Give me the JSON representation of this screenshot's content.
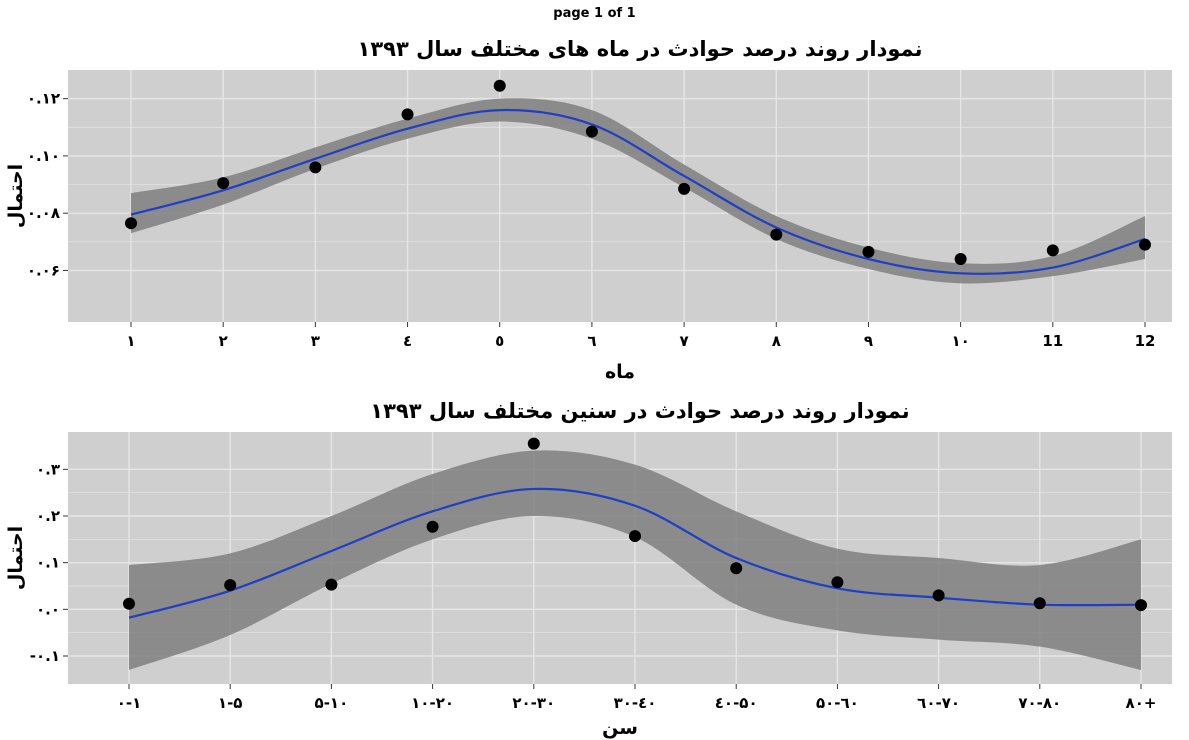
{
  "page_label": "page 1 of 1",
  "colors": {
    "panel": "#cfcfcf",
    "grid": "#e6e6e6",
    "band": "#7f7f7f",
    "line": "#1f3fc4",
    "point": "#000000"
  },
  "chart_data": [
    {
      "type": "scatter",
      "title": "نمودار روند درصد حوادث در ماه های مختلف سال ۱۳۹۳",
      "xlabel": "ماه",
      "ylabel": "احتمال",
      "x_tick_labels": [
        "۱",
        "۲",
        "۳",
        "٤",
        "٥",
        "٦",
        "۷",
        "۸",
        "۹",
        "۱۰",
        "11",
        "12"
      ],
      "y_ticks": [
        0.06,
        0.08,
        0.1,
        0.12
      ],
      "y_tick_labels": [
        "۰.۰۶",
        "۰.۰۸",
        "۰.۱۰",
        "۰.۱۲"
      ],
      "ylim": [
        0.042,
        0.13
      ],
      "points": [
        0.0765,
        0.0905,
        0.096,
        0.1145,
        0.1245,
        0.1085,
        0.0885,
        0.0725,
        0.0665,
        0.064,
        0.067,
        0.069
      ],
      "smooth": {
        "fit": [
          0.0795,
          0.088,
          0.099,
          0.1095,
          0.116,
          0.111,
          0.093,
          0.075,
          0.064,
          0.059,
          0.061,
          0.071
        ],
        "lower": [
          0.073,
          0.083,
          0.0955,
          0.106,
          0.112,
          0.106,
          0.089,
          0.071,
          0.0605,
          0.0555,
          0.058,
          0.064
        ],
        "upper": [
          0.087,
          0.0925,
          0.103,
          0.113,
          0.12,
          0.116,
          0.097,
          0.079,
          0.068,
          0.0625,
          0.065,
          0.079
        ]
      }
    },
    {
      "type": "scatter",
      "title": "نمودار روند درصد حوادث در سنین مختلف سال ۱۳۹۳",
      "xlabel": "سن",
      "ylabel": "احتمال",
      "x_tick_labels": [
        "۰-۱",
        "۱-۵",
        "۵-۱۰",
        "۱۰-۲۰",
        "۲۰-۳۰",
        "۳۰-٤۰",
        "٤۰-۵۰",
        "۵۰-٦۰",
        "٦۰-۷۰",
        "۷۰-۸۰",
        "۸۰+"
      ],
      "y_ticks": [
        -0.1,
        0.0,
        0.1,
        0.2,
        0.3
      ],
      "y_tick_labels": [
        "-۰.۱",
        "۰.۰",
        "۰.۱",
        "۰.۲",
        "۰.۳"
      ],
      "ylim": [
        -0.16,
        0.38
      ],
      "points": [
        0.012,
        0.052,
        0.053,
        0.177,
        0.355,
        0.157,
        0.088,
        0.058,
        0.03,
        0.013,
        0.009
      ],
      "smooth": {
        "fit": [
          -0.018,
          0.04,
          0.125,
          0.21,
          0.258,
          0.222,
          0.11,
          0.045,
          0.025,
          0.01,
          0.01
        ],
        "lower": [
          -0.13,
          -0.055,
          0.055,
          0.15,
          0.2,
          0.155,
          0.01,
          -0.045,
          -0.065,
          -0.08,
          -0.13
        ],
        "upper": [
          0.095,
          0.12,
          0.2,
          0.29,
          0.34,
          0.31,
          0.21,
          0.13,
          0.11,
          0.095,
          0.15
        ]
      }
    }
  ]
}
